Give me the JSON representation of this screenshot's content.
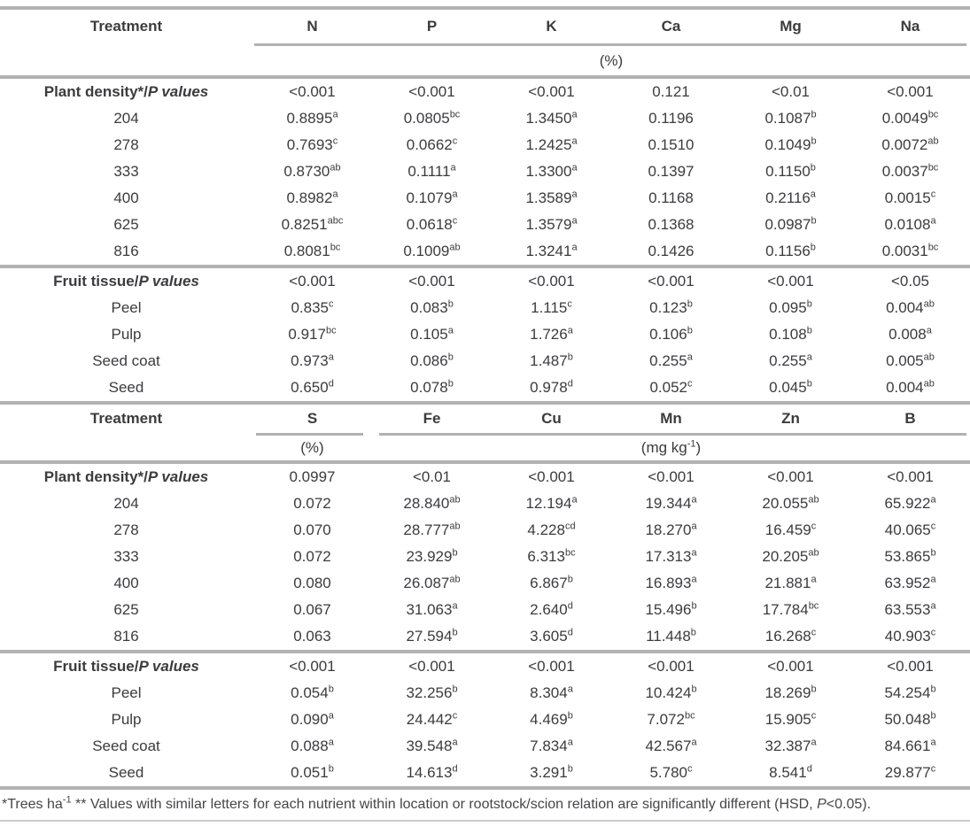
{
  "tables": [
    {
      "treatment_header": "Treatment",
      "columns": [
        "N",
        "P",
        "K",
        "Ca",
        "Mg",
        "Na"
      ],
      "unit_all": "(%)",
      "rows": [
        {
          "label": "Plant density*/_P values_",
          "group": true,
          "values": [
            "<0.001",
            "<0.001",
            "<0.001",
            "0.121",
            "<0.01",
            "<0.001"
          ]
        },
        {
          "label": "204",
          "values": [
            "0.8895^{a}",
            "0.0805^{bc}",
            "1.3450^{a}",
            "0.1196",
            "0.1087^{b}",
            "0.0049^{bc}"
          ]
        },
        {
          "label": "278",
          "values": [
            "0.7693^{c}",
            "0.0662^{c}",
            "1.2425^{a}",
            "0.1510",
            "0.1049^{b}",
            "0.0072^{ab}"
          ]
        },
        {
          "label": "333",
          "values": [
            "0.8730^{ab}",
            "0.1111^{a}",
            "1.3300^{a}",
            "0.1397",
            "0.1150^{b}",
            "0.0037^{bc}"
          ]
        },
        {
          "label": "400",
          "values": [
            "0.8982^{a}",
            "0.1079^{a}",
            "1.3589^{a}",
            "0.1168",
            "0.2116^{a}",
            "0.0015^{c}"
          ]
        },
        {
          "label": "625",
          "values": [
            "0.8251^{abc}",
            "0.0618^{c}",
            "1.3579^{a}",
            "0.1368",
            "0.0987^{b}",
            "0.0108^{a}"
          ]
        },
        {
          "label": "816",
          "values": [
            "0.8081^{bc}",
            "0.1009^{ab}",
            "1.3241^{a}",
            "0.1426",
            "0.1156^{b}",
            "0.0031^{bc}"
          ]
        },
        {
          "label": "Fruit tissue/_P values_",
          "group": true,
          "sep": true,
          "values": [
            "<0.001",
            "<0.001",
            "<0.001",
            "<0.001",
            "<0.001",
            "<0.05"
          ]
        },
        {
          "label": "Peel",
          "values": [
            "0.835^{c}",
            "0.083^{b}",
            "1.115^{c}",
            "0.123^{b}",
            "0.095^{b}",
            "0.004^{ab}"
          ]
        },
        {
          "label": "Pulp",
          "values": [
            "0.917^{bc}",
            "0.105^{a}",
            "1.726^{a}",
            "0.106^{b}",
            "0.108^{b}",
            "0.008^{a}"
          ]
        },
        {
          "label": "Seed coat",
          "values": [
            "0.973^{a}",
            "0.086^{b}",
            "1.487^{b}",
            "0.255^{a}",
            "0.255^{a}",
            "0.005^{ab}"
          ]
        },
        {
          "label": "Seed",
          "values": [
            "0.650^{d}",
            "0.078^{b}",
            "0.978^{d}",
            "0.052^{c}",
            "0.045^{b}",
            "0.004^{ab}"
          ]
        }
      ]
    },
    {
      "treatment_header": "Treatment",
      "columns": [
        "S",
        "Fe",
        "Cu",
        "Mn",
        "Zn",
        "B"
      ],
      "unit_s": "(%)",
      "unit_trace": "(mg kg^{-1})",
      "rows": [
        {
          "label": "Plant density*/_P values_",
          "group": true,
          "values": [
            "0.0997",
            "<0.01",
            "<0.001",
            "<0.001",
            "<0.001",
            "<0.001"
          ]
        },
        {
          "label": "204",
          "values": [
            "0.072",
            "28.840^{ab}",
            "12.194^{a}",
            "19.344^{a}",
            "20.055^{ab}",
            "65.922^{a}"
          ]
        },
        {
          "label": "278",
          "values": [
            "0.070",
            "28.777^{ab}",
            "4.228^{cd}",
            "18.270^{a}",
            "16.459^{c}",
            "40.065^{c}"
          ]
        },
        {
          "label": "333",
          "values": [
            "0.072",
            "23.929^{b}",
            "6.313^{bc}",
            "17.313^{a}",
            "20.205^{ab}",
            "53.865^{b}"
          ]
        },
        {
          "label": "400",
          "values": [
            "0.080",
            "26.087^{ab}",
            "6.867^{b}",
            "16.893^{a}",
            "21.881^{a}",
            "63.952^{a}"
          ]
        },
        {
          "label": "625",
          "values": [
            "0.067",
            "31.063^{a}",
            "2.640^{d}",
            "15.496^{b}",
            "17.784^{bc}",
            "63.553^{a}"
          ]
        },
        {
          "label": "816",
          "values": [
            "0.063",
            "27.594^{b}",
            "3.605^{d}",
            "11.448^{b}",
            "16.268^{c}",
            "40.903^{c}"
          ]
        },
        {
          "label": "Fruit tissue/_P values_",
          "group": true,
          "sep": true,
          "values": [
            "<0.001",
            "<0.001",
            "<0.001",
            "<0.001",
            "<0.001",
            "<0.001"
          ]
        },
        {
          "label": "Peel",
          "values": [
            "0.054^{b}",
            "32.256^{b}",
            "8.304^{a}",
            "10.424^{b}",
            "18.269^{b}",
            "54.254^{b}"
          ]
        },
        {
          "label": "Pulp",
          "values": [
            "0.090^{a}",
            "24.442^{c}",
            "4.469^{b}",
            "7.072^{bc}",
            "15.905^{c}",
            "50.048^{b}"
          ]
        },
        {
          "label": "Seed coat",
          "values": [
            "0.088^{a}",
            "39.548^{a}",
            "7.834^{a}",
            "42.567^{a}",
            "32.387^{a}",
            "84.661^{a}"
          ]
        },
        {
          "label": "Seed",
          "values": [
            "0.051^{b}",
            "14.613^{d}",
            "3.291^{b}",
            "5.780^{c}",
            "8.541^{d}",
            "29.877^{c}"
          ]
        }
      ]
    }
  ],
  "footnote": "*Trees ha^{-1} ** Values with similar letters for each nutrient within location or rootstock/scion relation are significantly different (HSD, _P_<0.05)."
}
